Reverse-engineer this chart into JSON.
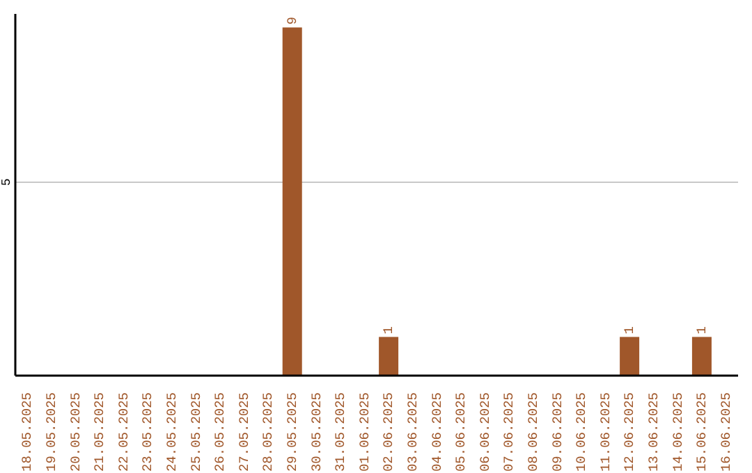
{
  "chart_data": {
    "type": "bar",
    "categories": [
      "18.05.2025",
      "19.05.2025",
      "20.05.2025",
      "21.05.2025",
      "22.05.2025",
      "23.05.2025",
      "24.05.2025",
      "25.05.2025",
      "26.05.2025",
      "27.05.2025",
      "28.05.2025",
      "29.05.2025",
      "30.05.2025",
      "31.05.2025",
      "01.06.2025",
      "02.06.2025",
      "03.06.2025",
      "04.06.2025",
      "05.06.2025",
      "06.06.2025",
      "07.06.2025",
      "08.06.2025",
      "09.06.2025",
      "10.06.2025",
      "11.06.2025",
      "12.06.2025",
      "13.06.2025",
      "14.06.2025",
      "15.06.2025",
      "16.06.2025"
    ],
    "values": [
      0,
      0,
      0,
      0,
      0,
      0,
      0,
      0,
      0,
      0,
      0,
      9,
      0,
      0,
      0,
      1,
      0,
      0,
      0,
      0,
      0,
      0,
      0,
      0,
      0,
      1,
      0,
      0,
      1,
      0
    ],
    "value_labels": [
      null,
      null,
      null,
      null,
      null,
      null,
      null,
      null,
      null,
      null,
      null,
      "9",
      null,
      null,
      null,
      "1",
      null,
      null,
      null,
      null,
      null,
      null,
      null,
      null,
      null,
      "1",
      null,
      null,
      "1",
      null
    ],
    "color": "#a0572a",
    "ylim": [
      0,
      9.35
    ],
    "yticks": [
      5
    ],
    "grid": "y"
  }
}
